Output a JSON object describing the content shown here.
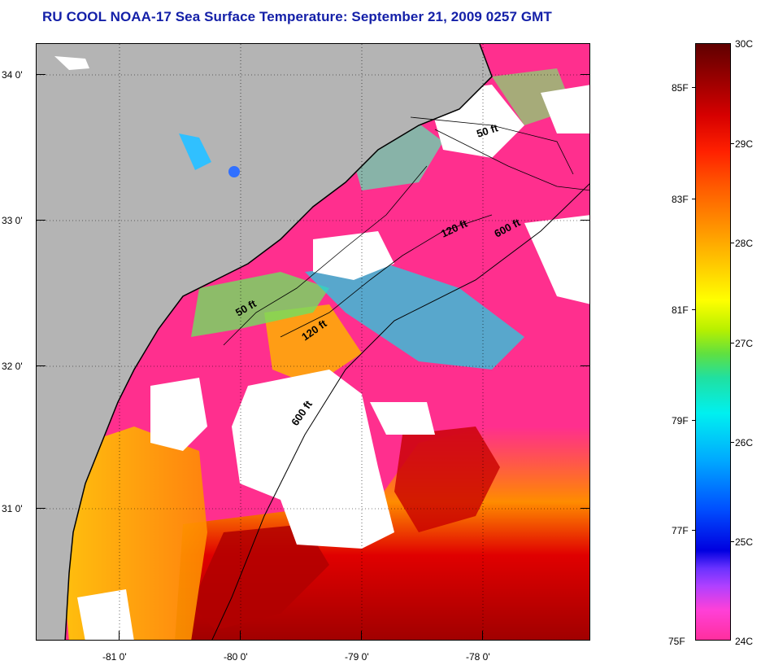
{
  "title": "RU COOL  NOAA-17  Sea Surface Temperature:  September 21, 2009 0257 GMT",
  "latitude_labels": [
    "34 0'",
    "33 0'",
    "32 0'",
    "31 0'"
  ],
  "longitude_labels": [
    "-81 0'",
    "-80 0'",
    "-79 0'",
    "-78 0'"
  ],
  "contours": [
    "50 ft",
    "120 ft",
    "600 ft",
    "50 ft",
    "120 ft",
    "600 ft"
  ],
  "colorbar": {
    "celsius_labels": [
      "30C",
      "29C",
      "28C",
      "27C",
      "26C",
      "25C",
      "24C"
    ],
    "fahrenheit_labels": [
      "85F",
      "83F",
      "81F",
      "79F",
      "77F",
      "75F"
    ],
    "range_c": [
      24,
      30
    ],
    "range_f": [
      75,
      86
    ]
  },
  "colors": {
    "title": "#1420a8",
    "land": "#b4b4b4",
    "cloud": "#ffffff",
    "cold_water": "#ff2f8e",
    "warm_water": "#c80000"
  }
}
